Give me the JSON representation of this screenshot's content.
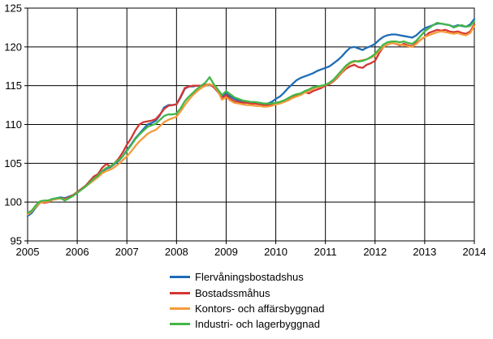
{
  "chart_data": {
    "type": "line",
    "title": "",
    "xlabel": "",
    "ylabel": "",
    "ylim": [
      95,
      125
    ],
    "y_tick_labels": [
      "95",
      "100",
      "105",
      "110",
      "115",
      "120",
      "125"
    ],
    "x_tick_labels": [
      "2005",
      "2006",
      "2007",
      "2008",
      "2009",
      "2010",
      "2011",
      "2012",
      "2013",
      "2014"
    ],
    "x_unit": "monthly points from January 2005 to January 2014",
    "grid": "on",
    "frame": "full border with black gridlines",
    "legend_position": "bottom",
    "background_color": "#ffffff",
    "axis_color": "#000000",
    "series": [
      {
        "name": "Flervåningsbostadshus",
        "color": "#1f6cb5",
        "values": [
          98.2,
          98.6,
          99.3,
          99.9,
          100.1,
          100.2,
          100.4,
          100.5,
          100.6,
          100.5,
          100.7,
          100.9,
          101.2,
          101.6,
          102.0,
          102.5,
          102.9,
          103.3,
          103.9,
          104.3,
          104.5,
          104.9,
          105.3,
          105.9,
          106.7,
          107.4,
          108.2,
          108.8,
          109.4,
          110.0,
          110.2,
          110.5,
          111.2,
          112.2,
          112.5,
          112.5,
          112.6,
          113.5,
          114.6,
          114.9,
          114.9,
          115.0,
          115.0,
          115.0,
          115.1,
          114.9,
          114.4,
          113.6,
          114.0,
          113.6,
          113.3,
          113.1,
          113.0,
          112.9,
          112.9,
          112.8,
          112.8,
          112.7,
          112.7,
          112.9,
          113.3,
          113.6,
          114.1,
          114.7,
          115.2,
          115.7,
          116.0,
          116.2,
          116.4,
          116.6,
          116.9,
          117.1,
          117.3,
          117.5,
          117.9,
          118.3,
          118.8,
          119.4,
          119.9,
          120.0,
          119.8,
          119.6,
          119.9,
          120.1,
          120.4,
          120.9,
          121.3,
          121.5,
          121.6,
          121.6,
          121.5,
          121.4,
          121.3,
          121.2,
          121.5,
          122.0,
          122.4,
          122.6,
          122.8,
          123.0,
          123.0,
          122.9,
          122.8,
          122.6,
          122.8,
          122.7,
          122.6,
          122.9,
          123.6
        ]
      },
      {
        "name": "Bostadssmåhus",
        "color": "#d43734",
        "values": [
          98.6,
          98.9,
          99.5,
          100.0,
          99.9,
          100.0,
          100.3,
          100.4,
          100.5,
          100.4,
          100.6,
          100.9,
          101.3,
          101.7,
          102.1,
          102.7,
          103.3,
          103.6,
          104.4,
          104.9,
          104.6,
          105.0,
          105.6,
          106.4,
          107.4,
          108.2,
          109.2,
          110.0,
          110.3,
          110.4,
          110.5,
          110.7,
          111.3,
          112.0,
          112.4,
          112.5,
          112.6,
          113.6,
          114.7,
          114.9,
          115.0,
          115.0,
          115.0,
          115.1,
          115.2,
          114.8,
          114.2,
          113.4,
          113.8,
          113.3,
          113.0,
          112.9,
          112.8,
          112.8,
          112.7,
          112.7,
          112.6,
          112.5,
          112.5,
          112.6,
          112.7,
          112.9,
          113.1,
          113.3,
          113.5,
          113.7,
          113.8,
          114.2,
          114.0,
          114.3,
          114.5,
          114.7,
          115.0,
          115.2,
          115.6,
          116.1,
          116.7,
          117.2,
          117.5,
          117.7,
          117.4,
          117.3,
          117.7,
          117.9,
          118.2,
          119.2,
          120.0,
          120.3,
          120.5,
          120.4,
          120.2,
          120.4,
          120.2,
          120.1,
          120.5,
          120.9,
          121.3,
          121.8,
          122.0,
          122.2,
          122.1,
          122.2,
          122.0,
          121.9,
          122.0,
          121.8,
          121.7,
          122.0,
          122.9
        ]
      },
      {
        "name": "Kontors- och affärsbyggnad",
        "color": "#f69a3a",
        "values": [
          98.4,
          98.8,
          99.4,
          99.9,
          100.0,
          100.1,
          100.3,
          100.4,
          100.5,
          100.3,
          100.5,
          100.8,
          101.2,
          101.6,
          102.0,
          102.4,
          102.8,
          103.2,
          103.7,
          104.0,
          104.2,
          104.5,
          104.9,
          105.4,
          105.9,
          106.5,
          107.2,
          107.8,
          108.3,
          108.8,
          109.1,
          109.3,
          109.8,
          110.3,
          110.6,
          110.8,
          111.0,
          111.7,
          112.5,
          113.2,
          113.8,
          114.3,
          114.7,
          115.0,
          115.2,
          115.0,
          114.3,
          113.2,
          113.5,
          113.1,
          112.8,
          112.7,
          112.6,
          112.5,
          112.5,
          112.4,
          112.4,
          112.3,
          112.3,
          112.4,
          112.6,
          112.7,
          112.9,
          113.1,
          113.4,
          113.6,
          113.8,
          114.1,
          114.3,
          114.6,
          114.8,
          114.9,
          115.1,
          115.3,
          115.7,
          116.2,
          116.8,
          117.4,
          117.9,
          118.1,
          118.2,
          118.3,
          118.4,
          118.6,
          118.9,
          119.5,
          120.0,
          120.3,
          120.5,
          120.4,
          120.3,
          120.2,
          120.1,
          120.0,
          120.4,
          120.9,
          121.3,
          121.5,
          121.7,
          121.9,
          122.0,
          121.9,
          121.8,
          121.7,
          121.8,
          121.6,
          121.5,
          121.8,
          122.7
        ]
      },
      {
        "name": "Industri- och lagerbyggnad",
        "color": "#43b649",
        "values": [
          98.6,
          98.9,
          99.6,
          100.1,
          100.2,
          100.2,
          100.4,
          100.5,
          100.5,
          100.2,
          100.5,
          100.8,
          101.2,
          101.6,
          102.0,
          102.5,
          103.0,
          103.4,
          104.0,
          104.4,
          104.6,
          105.0,
          105.4,
          105.9,
          106.6,
          107.3,
          108.1,
          108.7,
          109.2,
          109.7,
          109.9,
          110.1,
          110.6,
          111.1,
          111.3,
          111.3,
          111.4,
          112.1,
          113.0,
          113.6,
          114.1,
          114.6,
          115.0,
          115.4,
          116.1,
          115.2,
          114.5,
          113.8,
          114.3,
          113.9,
          113.5,
          113.3,
          113.1,
          113.0,
          112.9,
          112.9,
          112.8,
          112.7,
          112.7,
          112.7,
          112.8,
          112.9,
          113.1,
          113.4,
          113.7,
          113.9,
          114.0,
          114.3,
          114.5,
          114.8,
          114.9,
          115.0,
          115.1,
          115.4,
          115.8,
          116.4,
          117.0,
          117.6,
          118.0,
          118.2,
          118.1,
          118.2,
          118.4,
          118.7,
          119.1,
          119.7,
          120.3,
          120.6,
          120.7,
          120.7,
          120.6,
          120.7,
          120.5,
          120.4,
          120.8,
          121.4,
          122.0,
          122.4,
          122.8,
          123.1,
          123.0,
          122.9,
          122.8,
          122.5,
          122.7,
          122.8,
          122.6,
          122.7,
          123.3
        ]
      }
    ]
  }
}
